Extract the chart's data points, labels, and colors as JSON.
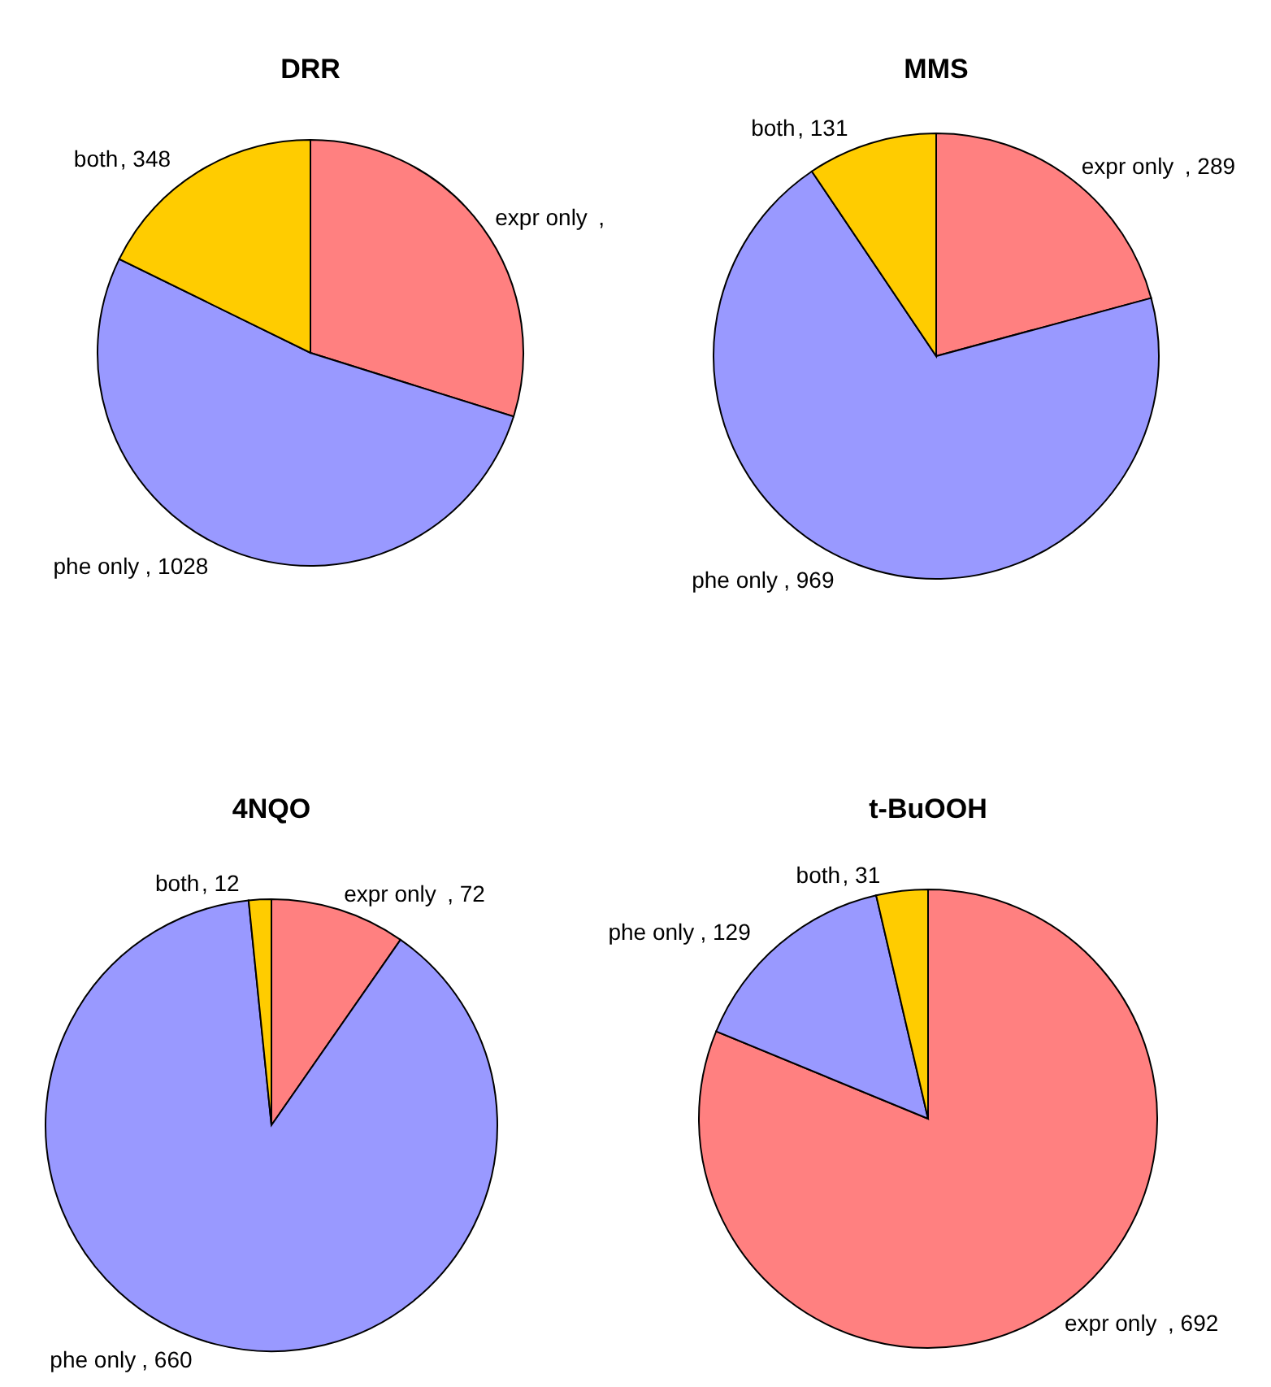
{
  "chart_data": [
    {
      "type": "pie",
      "title": "DRR",
      "categories": [
        "expr only",
        "phe only",
        "both"
      ],
      "values": [
        585,
        1028,
        348
      ],
      "colors": [
        "#ff8080",
        "#9999ff",
        "#ffcc00"
      ],
      "value_labels": [
        ",",
        ", 1028",
        ", 348"
      ]
    },
    {
      "type": "pie",
      "title": "MMS",
      "categories": [
        "expr only",
        "phe only",
        "both"
      ],
      "values": [
        289,
        969,
        131
      ],
      "colors": [
        "#ff8080",
        "#9999ff",
        "#ffcc00"
      ],
      "value_labels": [
        ", 289",
        ", 969",
        ", 131"
      ]
    },
    {
      "type": "pie",
      "title": "4NQO",
      "categories": [
        "expr only",
        "phe only",
        "both"
      ],
      "values": [
        72,
        660,
        12
      ],
      "colors": [
        "#ff8080",
        "#9999ff",
        "#ffcc00"
      ],
      "value_labels": [
        ", 72",
        ", 660",
        ", 12"
      ]
    },
    {
      "type": "pie",
      "title": "t-BuOOH",
      "categories": [
        "expr only",
        "phe only",
        "both"
      ],
      "values": [
        692,
        129,
        31
      ],
      "colors": [
        "#ff8080",
        "#9999ff",
        "#ffcc00"
      ],
      "value_labels": [
        ", 692",
        ", 129",
        ", 31"
      ]
    }
  ]
}
